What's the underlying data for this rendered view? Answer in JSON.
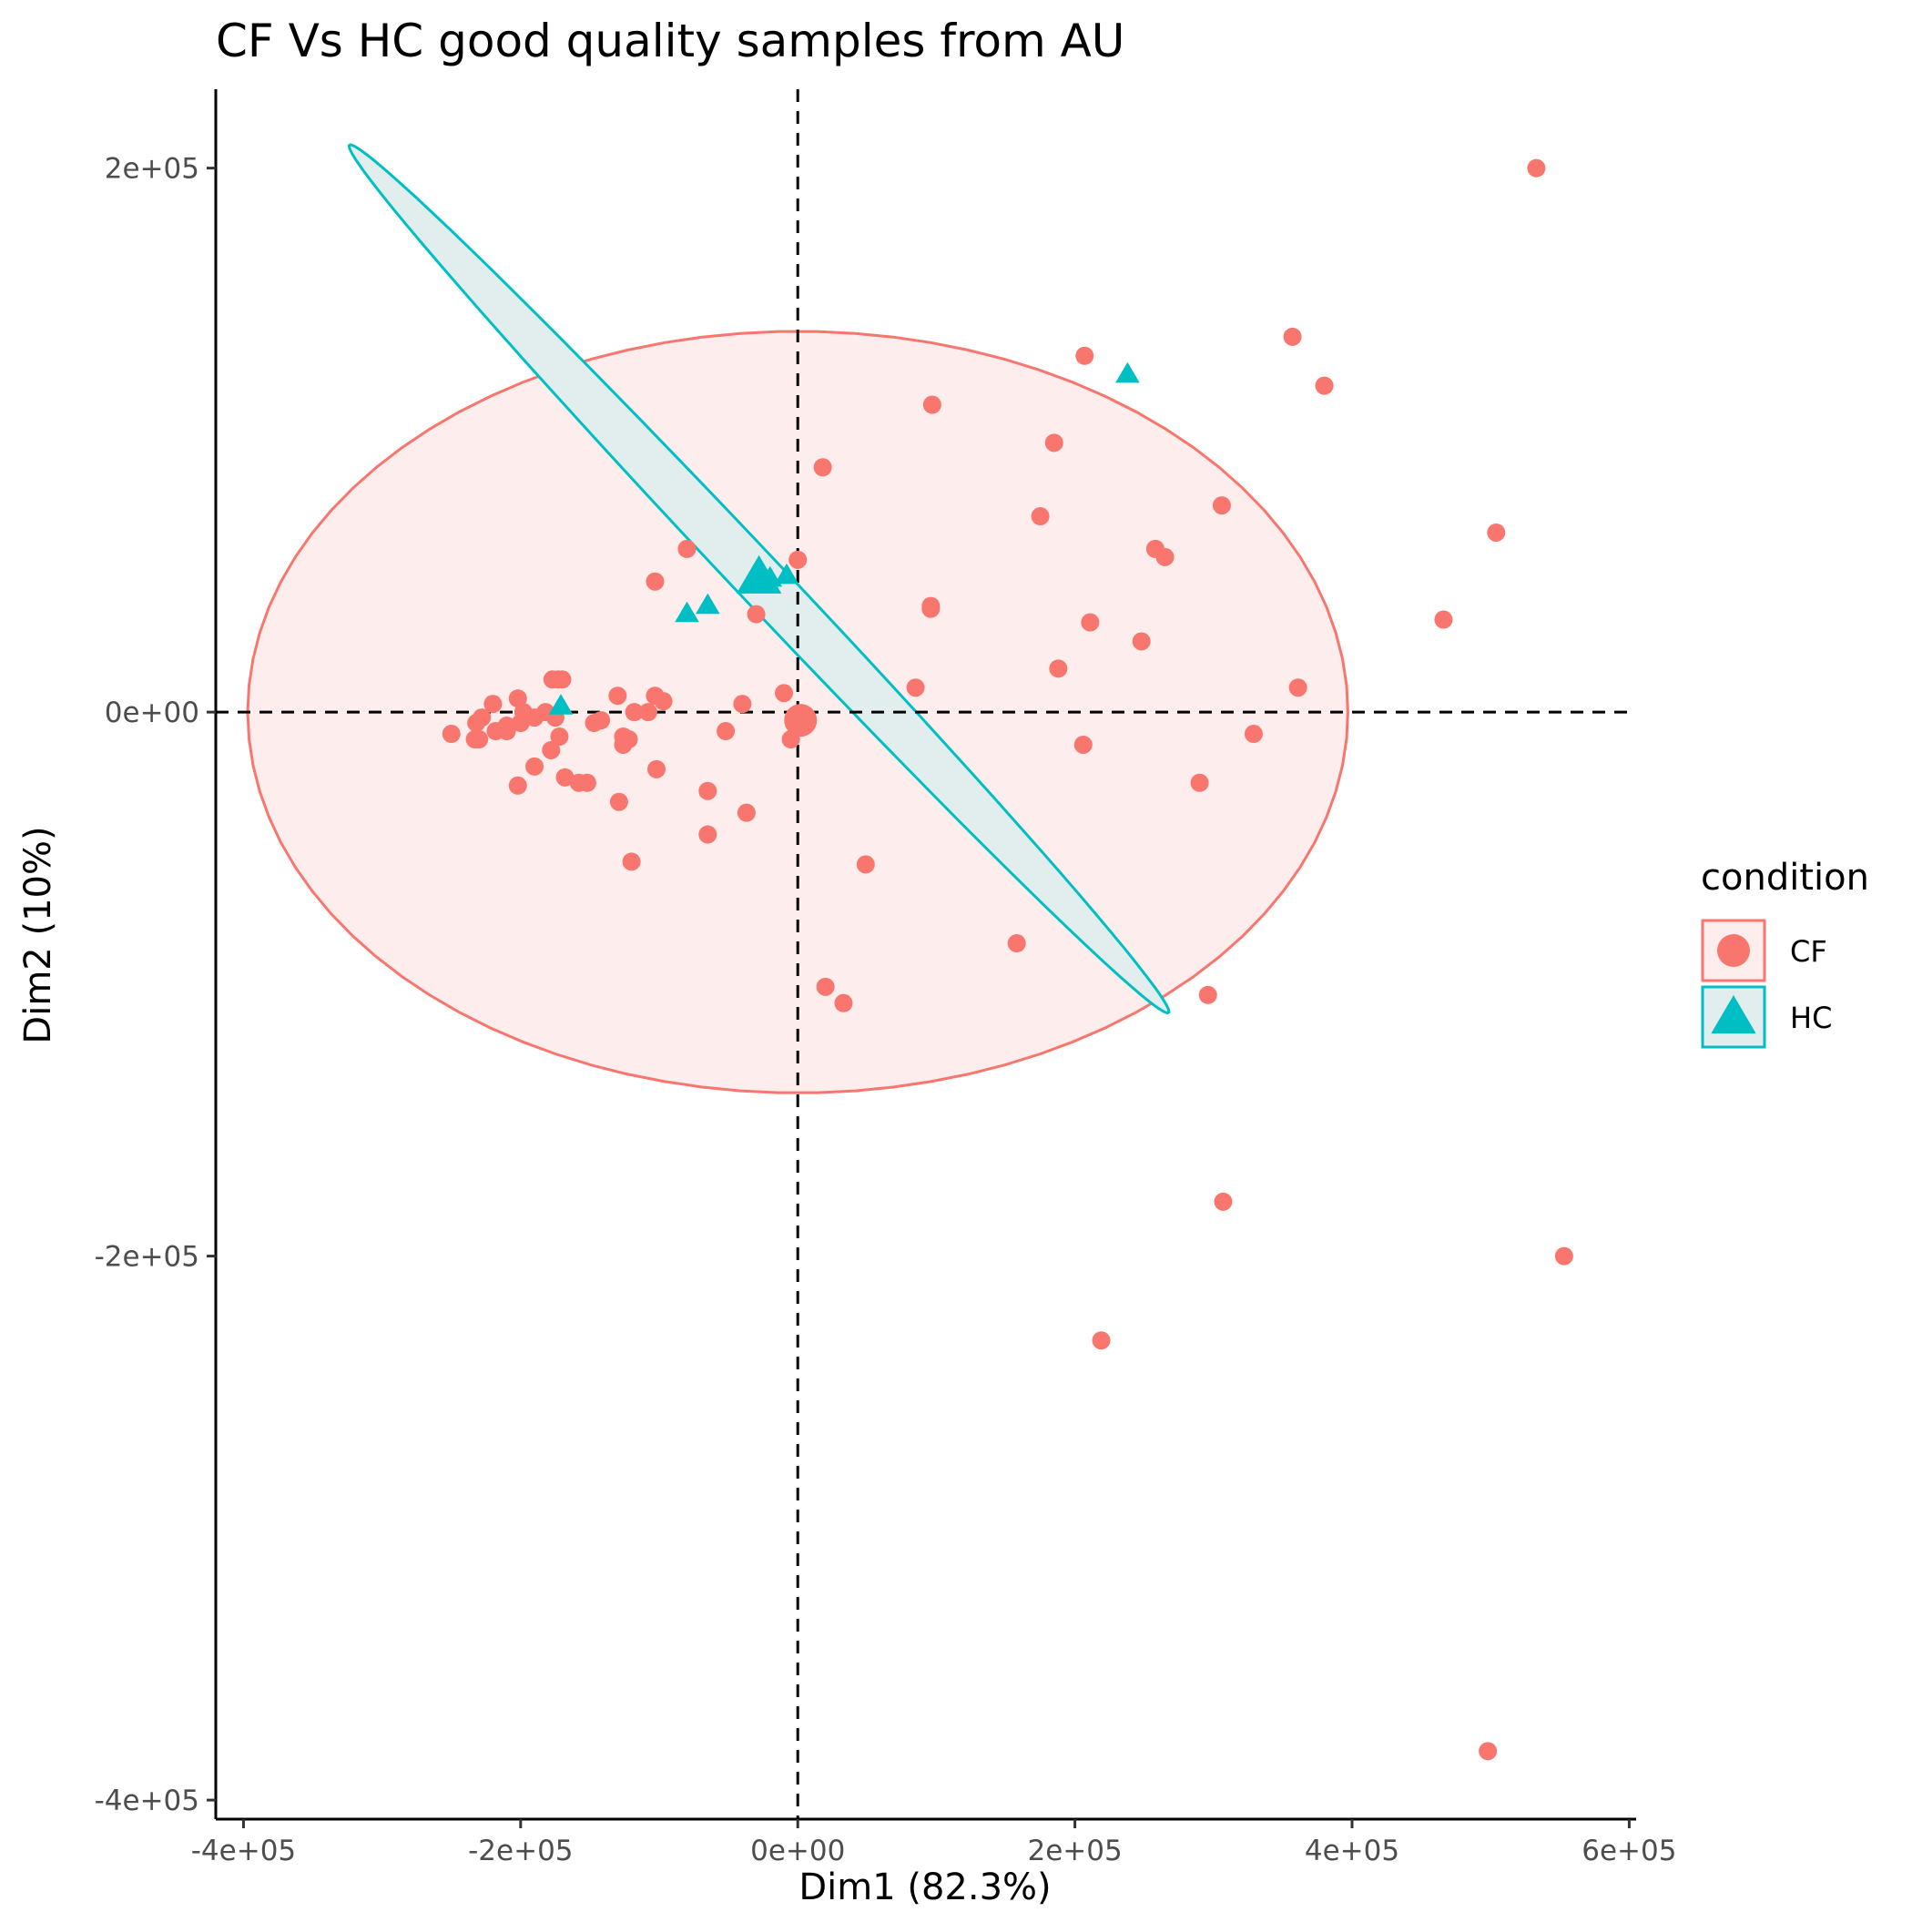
{
  "chart_data": {
    "type": "scatter",
    "title": "CF Vs HC good quality samples from AU",
    "xlabel": "Dim1 (82.3%)",
    "ylabel": "Dim2 (10%)",
    "xlim": [
      -420000,
      605000
    ],
    "ylim": [
      -407000,
      229000
    ],
    "x_ticks": [
      -400000,
      -200000,
      0,
      200000,
      400000,
      600000
    ],
    "x_tick_labels": [
      "-4e+05",
      "-2e+05",
      "0e+00",
      "2e+05",
      "4e+05",
      "6e+05"
    ],
    "y_ticks": [
      200000,
      0,
      -200000,
      -400000
    ],
    "y_tick_labels": [
      "2e+05",
      "0e+00",
      "-2e+05",
      "-4e+05"
    ],
    "reference_lines": {
      "x": 0,
      "y": 0,
      "style": "dashed"
    },
    "grid": false,
    "legend": {
      "title": "condition",
      "placement": "right"
    },
    "series": [
      {
        "name": "CF",
        "marker": "circle",
        "color": "#F8766D",
        "centroid": [
          2000,
          -3000
        ],
        "ellipse": {
          "center": [
            0,
            0
          ],
          "semi_axis_x": 397000,
          "semi_axis_y": 140000,
          "angle_deg": 0,
          "fill": "#FDEDED"
        },
        "points": [
          [
            533000,
            200000
          ],
          [
            357000,
            138000
          ],
          [
            380000,
            120000
          ],
          [
            207000,
            131000
          ],
          [
            97000,
            113000
          ],
          [
            185000,
            99000
          ],
          [
            18000,
            90000
          ],
          [
            504000,
            66000
          ],
          [
            306000,
            76000
          ],
          [
            175000,
            72000
          ],
          [
            258000,
            60000
          ],
          [
            265000,
            57000
          ],
          [
            -80000,
            60000
          ],
          [
            -103000,
            48000
          ],
          [
            0,
            56000
          ],
          [
            96000,
            38000
          ],
          [
            96000,
            39000
          ],
          [
            -30000,
            36000
          ],
          [
            466000,
            34000
          ],
          [
            211000,
            33000
          ],
          [
            248000,
            26000
          ],
          [
            188000,
            16000
          ],
          [
            85000,
            9000
          ],
          [
            361000,
            9000
          ],
          [
            -10000,
            7000
          ],
          [
            -130000,
            6000
          ],
          [
            -103000,
            6000
          ],
          [
            -97000,
            4000
          ],
          [
            -40000,
            3000
          ],
          [
            -170000,
            12000
          ],
          [
            -173000,
            12000
          ],
          [
            -177000,
            12000
          ],
          [
            -220000,
            3000
          ],
          [
            -202000,
            5000
          ],
          [
            -182000,
            0
          ],
          [
            -118000,
            0
          ],
          [
            -108000,
            0
          ],
          [
            -142000,
            -3000
          ],
          [
            -147000,
            -4000
          ],
          [
            -200000,
            -4000
          ],
          [
            -210000,
            -5000
          ],
          [
            -218000,
            -7000
          ],
          [
            -232000,
            -4000
          ],
          [
            -228000,
            -2000
          ],
          [
            -210000,
            -7000
          ],
          [
            -233000,
            -10000
          ],
          [
            -198000,
            0
          ],
          [
            -190000,
            -2000
          ],
          [
            -175000,
            -2000
          ],
          [
            -52000,
            -7000
          ],
          [
            -5000,
            -10000
          ],
          [
            -230000,
            -10000
          ],
          [
            -250000,
            -8000
          ],
          [
            -126000,
            -9000
          ],
          [
            -126000,
            -12000
          ],
          [
            -122000,
            -10000
          ],
          [
            -178000,
            -14000
          ],
          [
            -172000,
            -9000
          ],
          [
            206000,
            -12000
          ],
          [
            329000,
            -8000
          ],
          [
            -190000,
            -20000
          ],
          [
            -168000,
            -24000
          ],
          [
            -158000,
            -26000
          ],
          [
            -102000,
            -21000
          ],
          [
            -202000,
            -27000
          ],
          [
            -152000,
            -26000
          ],
          [
            -65000,
            -29000
          ],
          [
            290000,
            -26000
          ],
          [
            -129000,
            -33000
          ],
          [
            -37000,
            -37000
          ],
          [
            -65000,
            -45000
          ],
          [
            -120000,
            -55000
          ],
          [
            49000,
            -56000
          ],
          [
            158000,
            -85000
          ],
          [
            20000,
            -101000
          ],
          [
            33000,
            -107000
          ],
          [
            296000,
            -104000
          ],
          [
            307000,
            -180000
          ],
          [
            553000,
            -200000
          ],
          [
            219000,
            -231000
          ],
          [
            498000,
            -382000
          ]
        ]
      },
      {
        "name": "HC",
        "marker": "triangle",
        "color": "#00BFC4",
        "centroid": [
          -28000,
          49000
        ],
        "ellipse": {
          "center": [
            -28000,
            49000
          ],
          "semi_axis_x": 336000,
          "semi_axis_y": 11500,
          "angle_deg": -28.3,
          "fill": "#E2EEEE"
        },
        "points": [
          [
            238000,
            124000
          ],
          [
            -8000,
            50000
          ],
          [
            -20000,
            49000
          ],
          [
            -65000,
            39000
          ],
          [
            -80000,
            36000
          ],
          [
            -171000,
            2000
          ]
        ]
      }
    ]
  }
}
